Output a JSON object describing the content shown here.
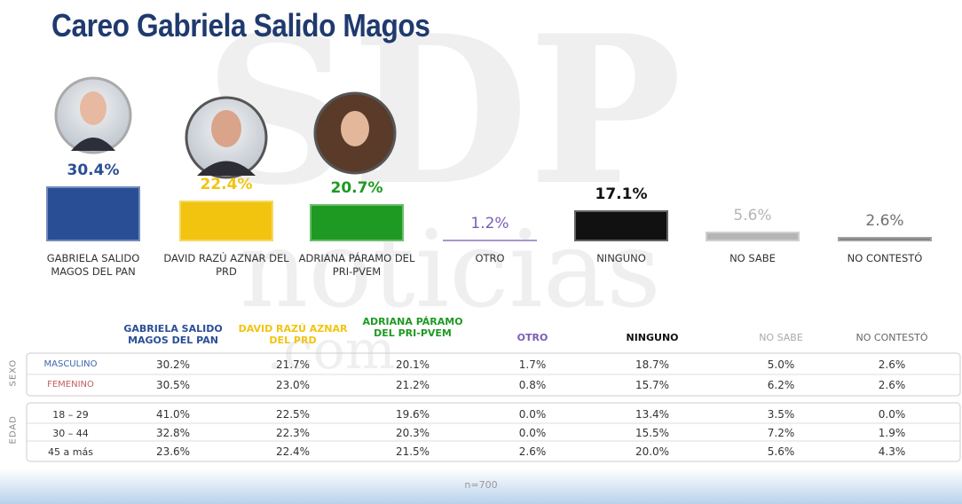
{
  "title": "Careo Gabriela Salido Magos",
  "watermark": [
    "SDP",
    "noticias",
    ".com"
  ],
  "chart_data": {
    "type": "bar",
    "categories": [
      "GABRIELA SALIDO MAGOS DEL PAN",
      "DAVID RAZÚ AZNAR DEL PRD",
      "ADRIANA PÁRAMO DEL PRI-PVEM",
      "OTRO",
      "NINGUNO",
      "NO SABE",
      "NO CONTESTÓ"
    ],
    "values": [
      30.4,
      22.4,
      20.7,
      1.2,
      17.1,
      5.6,
      2.6
    ],
    "value_labels": [
      "30.4%",
      "22.4%",
      "20.7%",
      "1.2%",
      "17.1%",
      "5.6%",
      "2.6%"
    ],
    "colors": [
      "#2a4e96",
      "#f2c40f",
      "#1e9a22",
      "#7b5cb8",
      "#111111",
      "#b5b5b5",
      "#6f6f6f"
    ]
  },
  "table": {
    "header": [
      "GABRIELA SALIDO MAGOS DEL PAN",
      "DAVID RAZÚ AZNAR DEL PRD",
      "ADRIANA PÁRAMO DEL PRI-PVEM",
      "OTRO",
      "NINGUNO",
      "NO SABE",
      "NO CONTESTÓ"
    ],
    "groups": [
      {
        "label": "SEXO",
        "rows": [
          {
            "label": "MASCULINO",
            "cells": [
              "30.2%",
              "21.7%",
              "20.1%",
              "1.7%",
              "18.7%",
              "5.0%",
              "2.6%"
            ]
          },
          {
            "label": "FEMENINO",
            "cells": [
              "30.5%",
              "23.0%",
              "21.2%",
              "0.8%",
              "15.7%",
              "6.2%",
              "2.6%"
            ]
          }
        ]
      },
      {
        "label": "EDAD",
        "rows": [
          {
            "label": "18 – 29",
            "cells": [
              "41.0%",
              "22.5%",
              "19.6%",
              "0.0%",
              "13.4%",
              "3.5%",
              "0.0%"
            ]
          },
          {
            "label": "30 – 44",
            "cells": [
              "32.8%",
              "22.3%",
              "20.3%",
              "0.0%",
              "15.5%",
              "7.2%",
              "1.9%"
            ]
          },
          {
            "label": "45 a más",
            "cells": [
              "23.6%",
              "22.4%",
              "21.5%",
              "2.6%",
              "20.0%",
              "5.6%",
              "4.3%"
            ]
          }
        ]
      }
    ]
  },
  "footer": "n=700"
}
